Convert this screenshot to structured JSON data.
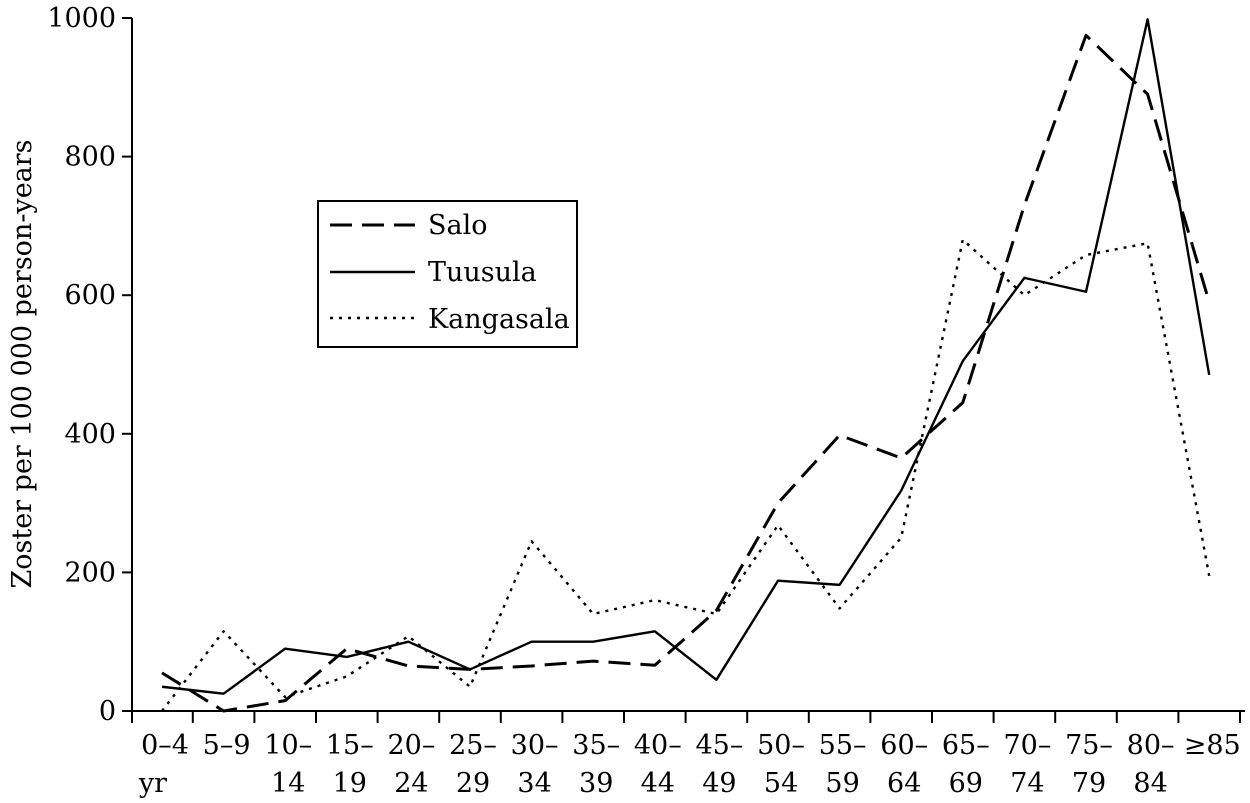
{
  "chart_data": {
    "type": "line",
    "title": "",
    "xlabel": "",
    "ylabel": "Zoster per 100 000 person-years",
    "ylim": [
      0,
      1000
    ],
    "yticks": [
      "0",
      "200",
      "400",
      "600",
      "800",
      "1000"
    ],
    "categories": [
      {
        "line1": "0–4",
        "line2": "yr"
      },
      {
        "line1": "5–9",
        "line2": ""
      },
      {
        "line1": "10–",
        "line2": "14"
      },
      {
        "line1": "15–",
        "line2": "19"
      },
      {
        "line1": "20–",
        "line2": "24"
      },
      {
        "line1": "25–",
        "line2": "29"
      },
      {
        "line1": "30–",
        "line2": "34"
      },
      {
        "line1": "35–",
        "line2": "39"
      },
      {
        "line1": "40–",
        "line2": "44"
      },
      {
        "line1": "45–",
        "line2": "49"
      },
      {
        "line1": "50–",
        "line2": "54"
      },
      {
        "line1": "55–",
        "line2": "59"
      },
      {
        "line1": "60–",
        "line2": "64"
      },
      {
        "line1": "65–",
        "line2": "69"
      },
      {
        "line1": "70–",
        "line2": "74"
      },
      {
        "line1": "75–",
        "line2": "79"
      },
      {
        "line1": "80–",
        "line2": "84"
      },
      {
        "line1": "≥85",
        "line2": ""
      }
    ],
    "series": [
      {
        "name": "Salo",
        "style": "dashed",
        "values": [
          55,
          0,
          15,
          90,
          65,
          60,
          65,
          72,
          66,
          145,
          300,
          398,
          365,
          445,
          730,
          975,
          890,
          590
        ]
      },
      {
        "name": "Tuusula",
        "style": "solid",
        "values": [
          35,
          25,
          90,
          78,
          100,
          60,
          100,
          100,
          115,
          45,
          188,
          182,
          318,
          505,
          625,
          605,
          998,
          485
        ]
      },
      {
        "name": "Kangasala",
        "style": "dotted",
        "values": [
          0,
          115,
          20,
          50,
          108,
          35,
          245,
          140,
          160,
          140,
          268,
          148,
          250,
          680,
          600,
          658,
          675,
          195
        ]
      }
    ],
    "legend_position": "upper-left",
    "grid": false,
    "color": "#000000"
  }
}
